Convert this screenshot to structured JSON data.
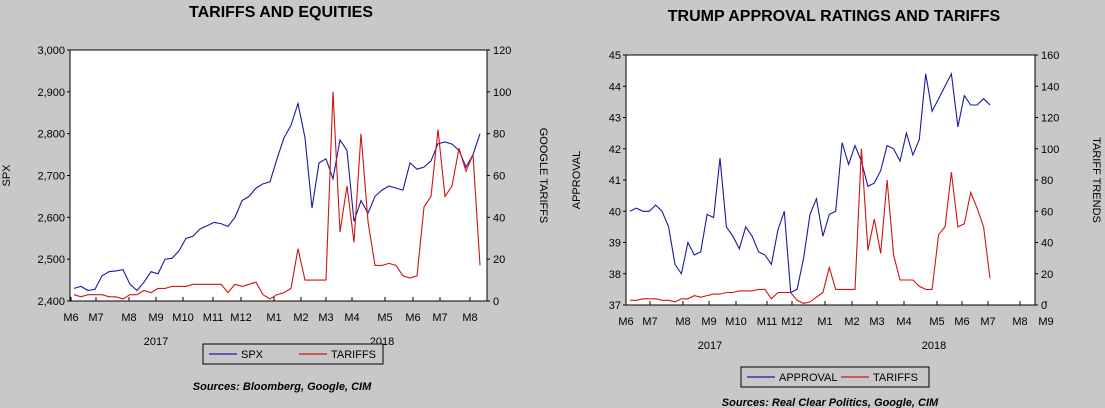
{
  "colors": {
    "background": "#c8c8c8",
    "plot_bg": "#ffffff",
    "series1": "#1a1aa0",
    "series2": "#d01414"
  },
  "chart_data": [
    {
      "type": "line",
      "title": "TARIFFS AND EQUITIES",
      "ylabel_left": "SPX",
      "ylabel_right": "GOOGLE TARIFFS",
      "ylim_left": [
        2400,
        3000
      ],
      "ylim_right": [
        0,
        120
      ],
      "yticks_left": [
        "2,400",
        "2,500",
        "2,600",
        "2,700",
        "2,800",
        "2,900",
        "3,000"
      ],
      "yticks_right": [
        "0",
        "20",
        "40",
        "60",
        "80",
        "100",
        "120"
      ],
      "x_tick_labels": [
        "M6",
        "M7",
        "M8",
        "M9",
        "M10",
        "M11",
        "M12",
        "M1",
        "M2",
        "M3",
        "M4",
        "M5",
        "M6",
        "M7",
        "M8"
      ],
      "year_labels": [
        "2017",
        "2018"
      ],
      "legend_position": "bottom",
      "source": "Sources:  Bloomberg, Google, CIM",
      "series": [
        {
          "name": "SPX",
          "axis": "left",
          "values": [
            2430,
            2435,
            2425,
            2428,
            2460,
            2470,
            2472,
            2475,
            2440,
            2425,
            2445,
            2470,
            2465,
            2500,
            2502,
            2520,
            2550,
            2555,
            2572,
            2580,
            2588,
            2585,
            2578,
            2600,
            2640,
            2650,
            2670,
            2680,
            2685,
            2740,
            2790,
            2820,
            2872,
            2790,
            2622,
            2730,
            2740,
            2692,
            2785,
            2760,
            2590,
            2640,
            2610,
            2650,
            2665,
            2675,
            2670,
            2665,
            2730,
            2715,
            2720,
            2735,
            2776,
            2780,
            2775,
            2760,
            2720,
            2750,
            2800
          ]
        },
        {
          "name": "TARIFFS",
          "axis": "right",
          "values": [
            3,
            2,
            3,
            3,
            3,
            2,
            2,
            1,
            3,
            3,
            5,
            4,
            6,
            6,
            7,
            7,
            7,
            8,
            8,
            8,
            8,
            8,
            4,
            8,
            7,
            8,
            9,
            3,
            1,
            3,
            4,
            6,
            25,
            10,
            10,
            10,
            10,
            100,
            33,
            55,
            28,
            80,
            38,
            17,
            17,
            18,
            17,
            12,
            11,
            12,
            45,
            50,
            82,
            50,
            55,
            73,
            62,
            70,
            17
          ]
        }
      ]
    },
    {
      "type": "line",
      "title": "TRUMP APPROVAL RATINGS AND TARIFFS",
      "ylabel_left": "APPROVAL",
      "ylabel_right": "TARIFF TRENDS",
      "ylim_left": [
        37,
        45
      ],
      "ylim_right": [
        0,
        160
      ],
      "yticks_left": [
        "37",
        "38",
        "39",
        "40",
        "41",
        "42",
        "43",
        "44",
        "45"
      ],
      "yticks_right": [
        "0",
        "20",
        "40",
        "60",
        "80",
        "100",
        "120",
        "140",
        "160"
      ],
      "x_tick_labels": [
        "M6",
        "M7",
        "M8",
        "M9",
        "M10",
        "M11",
        "M12",
        "M1",
        "M2",
        "M3",
        "M4",
        "M5",
        "M6",
        "M7",
        "M8",
        "M9"
      ],
      "year_labels": [
        "2017",
        "2018"
      ],
      "legend_position": "bottom",
      "source": "Sources:  Real Clear Politics, Google, CIM",
      "series": [
        {
          "name": "APPROVAL",
          "axis": "left",
          "values": [
            40.0,
            40.1,
            40.0,
            40.0,
            40.2,
            40.0,
            39.5,
            38.3,
            38.0,
            39.0,
            38.6,
            38.7,
            39.9,
            39.8,
            41.7,
            39.5,
            39.2,
            38.8,
            39.5,
            39.2,
            38.7,
            38.6,
            38.3,
            39.4,
            40.0,
            37.4,
            37.5,
            38.5,
            39.9,
            40.4,
            39.2,
            39.9,
            40.0,
            42.2,
            41.5,
            42.1,
            41.6,
            40.8,
            40.9,
            41.3,
            42.1,
            42.0,
            41.6,
            42.5,
            41.8,
            42.3,
            44.4,
            43.2,
            43.6,
            44.0,
            44.4,
            42.7,
            43.7,
            43.4,
            43.4,
            43.6,
            43.4
          ]
        },
        {
          "name": "TARIFFS",
          "axis": "right",
          "values": [
            3,
            3,
            4,
            4,
            4,
            3,
            3,
            2,
            4,
            4,
            6,
            5,
            6,
            7,
            7,
            8,
            8,
            9,
            9,
            9,
            10,
            10,
            4,
            8,
            8,
            8,
            3,
            1,
            2,
            5,
            8,
            24,
            10,
            10,
            10,
            10,
            100,
            35,
            55,
            33,
            80,
            32,
            16,
            16,
            16,
            12,
            10,
            10,
            45,
            50,
            85,
            50,
            52,
            72,
            62,
            50,
            17
          ]
        }
      ]
    }
  ]
}
